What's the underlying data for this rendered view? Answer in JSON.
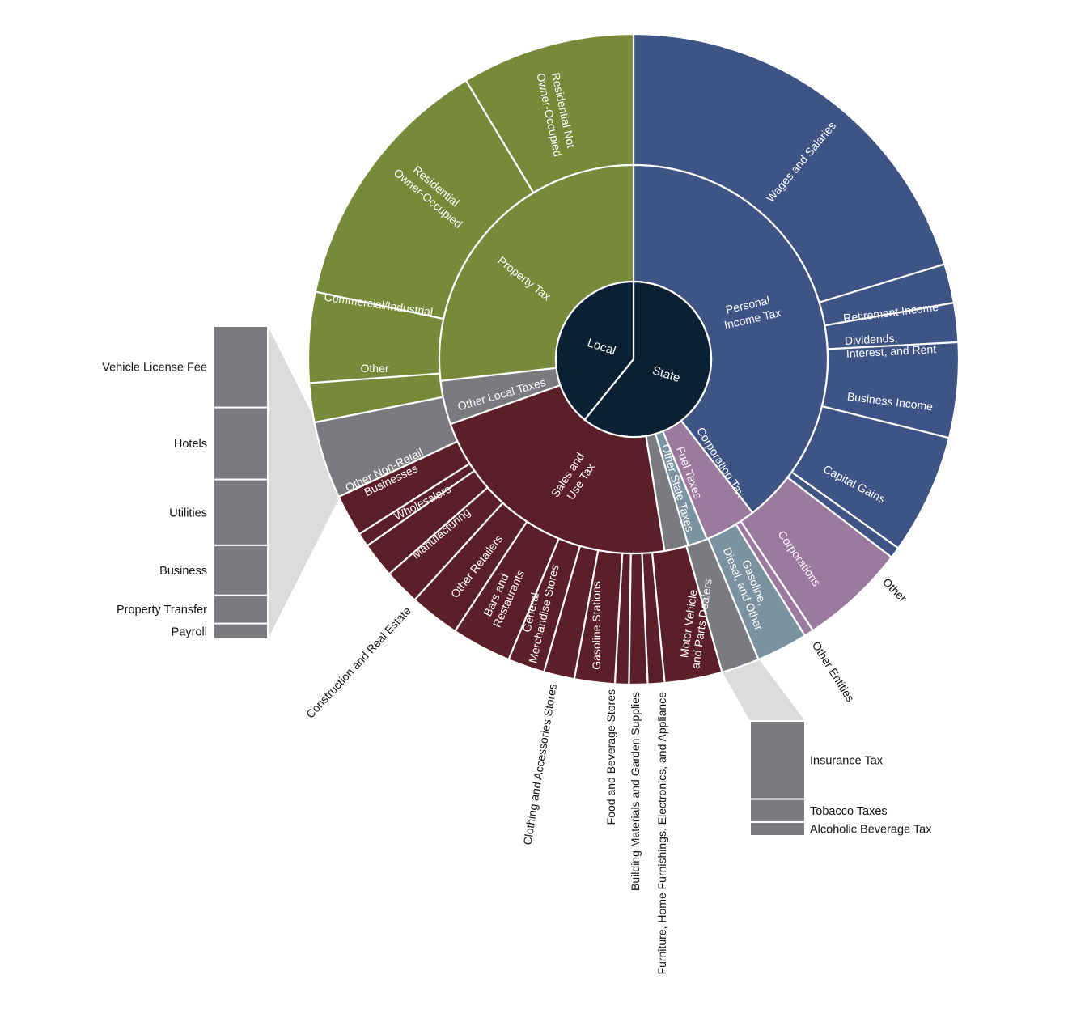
{
  "colors": {
    "state": "#3e5485",
    "local_property": "#788a3a",
    "sales": "#5b1f29",
    "other_local": "#797b7f",
    "corporation": "#9c7aa0",
    "fuel": "#7b93a0",
    "other_state": "#797b7f",
    "core": "#0a2035"
  },
  "chart_data": {
    "type": "sunburst",
    "title": "",
    "rings": {
      "core": [
        {
          "label": "State",
          "start": 0,
          "end": 219
        },
        {
          "label": "Local",
          "start": 219,
          "end": 360
        }
      ],
      "middle": [
        {
          "label": "Personal Income Tax",
          "start": 0,
          "end": 142.2,
          "group": "state"
        },
        {
          "label": "Corporation Tax",
          "start": 142.2,
          "end": 157.8,
          "group": "corporation"
        },
        {
          "label": "Fuel Taxes",
          "start": 157.8,
          "end": 163.6,
          "group": "fuel"
        },
        {
          "label": "Other State Taxes",
          "start": 163.6,
          "end": 170.8,
          "group": "other_state"
        },
        {
          "label": "Sales and Use Tax",
          "start": 170.8,
          "end": 250.5,
          "group": "sales"
        },
        {
          "label": "Other Local Taxes",
          "start": 250.5,
          "end": 263.6,
          "group": "other_local"
        },
        {
          "label": "Property Tax",
          "start": 263.6,
          "end": 360,
          "group": "local_property"
        }
      ],
      "outer": [
        {
          "label": "Wages and Salaries",
          "start": 0,
          "end": 73,
          "group": "state"
        },
        {
          "label": "Retirement Income",
          "start": 73,
          "end": 80,
          "group": "state"
        },
        {
          "label": "Dividends, Interest, and Rent",
          "start": 80,
          "end": 87,
          "group": "state"
        },
        {
          "label": "Business Income",
          "start": 87,
          "end": 104,
          "group": "state"
        },
        {
          "label": "Capital Gains",
          "start": 104,
          "end": 125.5,
          "group": "state"
        },
        {
          "label": "Other",
          "start": 125.5,
          "end": 127.5,
          "group": "state"
        },
        {
          "label": "Corporations",
          "start": 127.5,
          "end": 146.5,
          "group": "corporation"
        },
        {
          "label": "Other Entities",
          "start": 146.5,
          "end": 148.2,
          "group": "corporation"
        },
        {
          "label": "Gasoline, Diesel, and Other",
          "start": 148.2,
          "end": 157.4,
          "group": "fuel"
        },
        {
          "label": "Other State Taxes",
          "start": 157.4,
          "end": 164.2,
          "group": "other_state"
        },
        {
          "label": "Motor Vehicle and Parts Dealers",
          "start": 164.2,
          "end": 174.5,
          "group": "sales"
        },
        {
          "label": "Furniture, Home Furnishings, Electronics, and Appliance",
          "start": 174.5,
          "end": 177.5,
          "group": "sales"
        },
        {
          "label": "Building Materials and Garden Supplies",
          "start": 177.5,
          "end": 180.8,
          "group": "sales"
        },
        {
          "label": "Food and Beverage Stores",
          "start": 180.8,
          "end": 183.3,
          "group": "sales"
        },
        {
          "label": "Gasoline Stations",
          "start": 183.3,
          "end": 190.5,
          "group": "sales"
        },
        {
          "label": "Clothing and Accessories Stores",
          "start": 190.5,
          "end": 196,
          "group": "sales"
        },
        {
          "label": "General Merchandise Stores",
          "start": 196,
          "end": 202.6,
          "group": "sales"
        },
        {
          "label": "Bars and Restaurants",
          "start": 202.6,
          "end": 213.3,
          "group": "sales"
        },
        {
          "label": "Other Retailers",
          "start": 213.3,
          "end": 222.3,
          "group": "sales"
        },
        {
          "label": "Manufacturing",
          "start": 222.3,
          "end": 228.7,
          "group": "sales"
        },
        {
          "label": "Wholesalers",
          "start": 228.7,
          "end": 235,
          "group": "sales"
        },
        {
          "label": "Construction and Real Estate",
          "start": 235,
          "end": 237.5,
          "group": "sales"
        },
        {
          "label": "Other Non-Retail Businesses",
          "start": 237.5,
          "end": 245,
          "group": "sales"
        },
        {
          "label": "Other Local Taxes",
          "start": 245,
          "end": 258.8,
          "group": "other_local"
        },
        {
          "label": "Other",
          "start": 258.8,
          "end": 265.8,
          "group": "local_property"
        },
        {
          "label": "Commercial/Industrial",
          "start": 265.8,
          "end": 282,
          "group": "local_property"
        },
        {
          "label": "Residential Owner-Occupied",
          "start": 282,
          "end": 329,
          "group": "local_property"
        },
        {
          "label": "Residential Not Owner-Occupied",
          "start": 329,
          "end": 360,
          "group": "local_property"
        }
      ]
    },
    "breakouts": {
      "other_local_taxes": [
        {
          "label": "Vehicle License Fee",
          "share": 26
        },
        {
          "label": "Hotels",
          "share": 23
        },
        {
          "label": "Utilities",
          "share": 21
        },
        {
          "label": "Business",
          "share": 16
        },
        {
          "label": "Property Transfer",
          "share": 9
        },
        {
          "label": "Payroll",
          "share": 5
        }
      ],
      "other_state_taxes": [
        {
          "label": "Insurance Tax",
          "share": 68
        },
        {
          "label": "Tobacco Taxes",
          "share": 20
        },
        {
          "label": "Alcoholic Beverage Tax",
          "share": 12
        }
      ]
    },
    "display_labels": {
      "core_state": "State",
      "core_local": "Local",
      "personal_income_1": "Personal",
      "personal_income_2": "Income Tax",
      "property_tax": "Property Tax",
      "sales_1": "Sales and",
      "sales_2": "Use Tax",
      "other_local": "Other Local Taxes",
      "corporation_tax": "Corporation Tax",
      "fuel_taxes": "Fuel Taxes",
      "other_state_taxes": "Other State Taxes",
      "wages": "Wages and Salaries",
      "retirement": "Retirement Income",
      "dividends_1": "Dividends,",
      "dividends_2": "Interest, and Rent",
      "business_income": "Business Income",
      "capital_gains": "Capital Gains",
      "other_state_outer": "Other",
      "corporations": "Corporations",
      "other_entities": "Other  Entities",
      "gasoline_1": "Gasoline,",
      "gasoline_2": "Diesel, and Other",
      "motor_1": "Motor Vehicle",
      "motor_2": "and Parts Dealers",
      "furniture": "Furniture, Home Furnishings, Electronics, and Appliance",
      "building": "Building Materials and Garden Supplies",
      "food": "Food and Beverage Stores",
      "gas_stations": "Gasoline Stations",
      "clothing": "Clothing and Accessories Stores",
      "general_1": "General",
      "general_2": "Merchandise Stores",
      "bars_1": "Bars and",
      "bars_2": "Restaurants",
      "other_retailers": "Other Retailers",
      "manufacturing": "Manufacturing",
      "wholesalers": "Wholesalers",
      "construction": "Construction and Real Estate",
      "nonretail_1": "Other Non-Retail",
      "nonretail_2": "Businesses",
      "property_other": "Other",
      "commercial": "Commercial/Industrial",
      "res_owner_1": "Residential",
      "res_owner_2": "Owner-Occupied",
      "res_not_1": "Residential Not",
      "res_not_2": "Owner-Occupied"
    }
  }
}
